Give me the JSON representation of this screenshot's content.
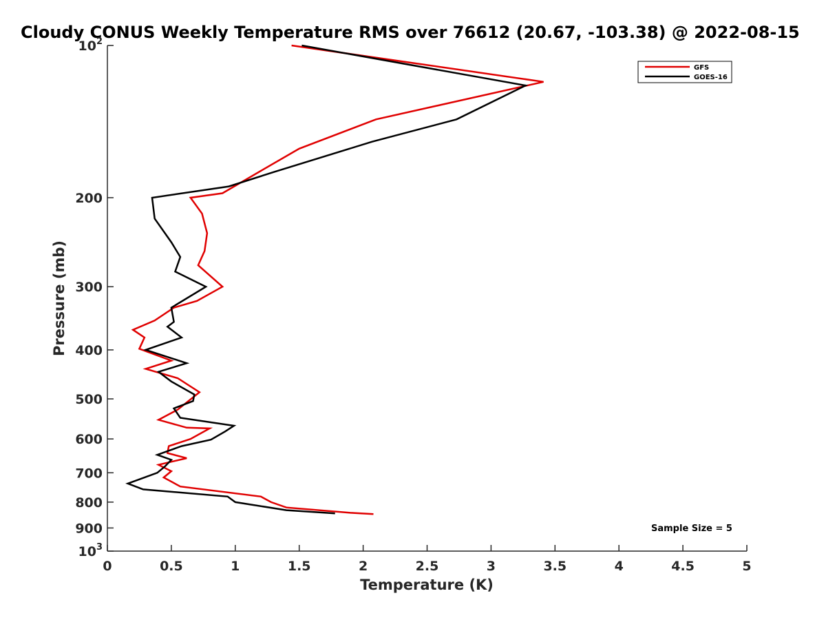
{
  "chart_data": {
    "type": "line",
    "title": "Cloudy CONUS Weekly Temperature RMS over 76612 (20.67, -103.38) @ 2022-08-15",
    "xlabel": "Temperature (K)",
    "ylabel": "Pressure (mb)",
    "xlim": [
      0,
      5
    ],
    "ylim": [
      100,
      1000
    ],
    "yscale": "log",
    "y_reversed": true,
    "xticks": [
      0,
      0.5,
      1,
      1.5,
      2,
      2.5,
      3,
      3.5,
      4,
      4.5,
      5
    ],
    "xtick_labels": [
      "0",
      "0.5",
      "1",
      "1.5",
      "2",
      "2.5",
      "3",
      "3.5",
      "4",
      "4.5",
      "5"
    ],
    "yticks": [
      100,
      200,
      300,
      400,
      500,
      600,
      700,
      800,
      900,
      1000
    ],
    "ytick_labels": [
      {
        "base": "10",
        "exp": "2"
      },
      {
        "text": "200"
      },
      {
        "text": "300"
      },
      {
        "text": "400"
      },
      {
        "text": "500"
      },
      {
        "text": "600"
      },
      {
        "text": "700"
      },
      {
        "text": "800"
      },
      {
        "text": "900"
      },
      {
        "base": "10",
        "exp": "3"
      }
    ],
    "legend_position": "top-right",
    "annotation": "Sample Size = 5",
    "series": [
      {
        "name": "GFS",
        "color": "#e00000",
        "points": [
          [
            1.44,
            100
          ],
          [
            3.41,
            118
          ],
          [
            2.1,
            140
          ],
          [
            1.5,
            160
          ],
          [
            1.2,
            177
          ],
          [
            0.9,
            196
          ],
          [
            0.65,
            200
          ],
          [
            0.74,
            215
          ],
          [
            0.78,
            235
          ],
          [
            0.76,
            255
          ],
          [
            0.71,
            272
          ],
          [
            0.9,
            300
          ],
          [
            0.7,
            320
          ],
          [
            0.52,
            330
          ],
          [
            0.37,
            350
          ],
          [
            0.2,
            365
          ],
          [
            0.29,
            378
          ],
          [
            0.25,
            398
          ],
          [
            0.5,
            420
          ],
          [
            0.3,
            436
          ],
          [
            0.55,
            455
          ],
          [
            0.72,
            485
          ],
          [
            0.55,
            525
          ],
          [
            0.4,
            550
          ],
          [
            0.62,
            570
          ],
          [
            0.8,
            572
          ],
          [
            0.65,
            600
          ],
          [
            0.48,
            620
          ],
          [
            0.47,
            640
          ],
          [
            0.62,
            655
          ],
          [
            0.4,
            675
          ],
          [
            0.5,
            695
          ],
          [
            0.44,
            715
          ],
          [
            0.57,
            745
          ],
          [
            1.2,
            780
          ],
          [
            1.28,
            800
          ],
          [
            1.4,
            820
          ],
          [
            1.9,
            840
          ],
          [
            2.08,
            845
          ]
        ]
      },
      {
        "name": "GOES-16",
        "color": "#000000",
        "points": [
          [
            1.52,
            100
          ],
          [
            3.27,
            120
          ],
          [
            2.73,
            140
          ],
          [
            2.07,
            155
          ],
          [
            1.3,
            178
          ],
          [
            0.95,
            190
          ],
          [
            0.35,
            200
          ],
          [
            0.37,
            220
          ],
          [
            0.5,
            245
          ],
          [
            0.57,
            262
          ],
          [
            0.53,
            280
          ],
          [
            0.77,
            300
          ],
          [
            0.5,
            330
          ],
          [
            0.52,
            352
          ],
          [
            0.47,
            360
          ],
          [
            0.58,
            378
          ],
          [
            0.3,
            400
          ],
          [
            0.62,
            425
          ],
          [
            0.4,
            442
          ],
          [
            0.5,
            462
          ],
          [
            0.68,
            490
          ],
          [
            0.67,
            505
          ],
          [
            0.52,
            522
          ],
          [
            0.57,
            545
          ],
          [
            0.99,
            565
          ],
          [
            0.92,
            580
          ],
          [
            0.81,
            602
          ],
          [
            0.58,
            620
          ],
          [
            0.39,
            645
          ],
          [
            0.5,
            660
          ],
          [
            0.45,
            680
          ],
          [
            0.39,
            700
          ],
          [
            0.16,
            735
          ],
          [
            0.28,
            755
          ],
          [
            0.94,
            780
          ],
          [
            1.0,
            800
          ],
          [
            1.4,
            830
          ],
          [
            1.78,
            842
          ]
        ]
      }
    ]
  }
}
